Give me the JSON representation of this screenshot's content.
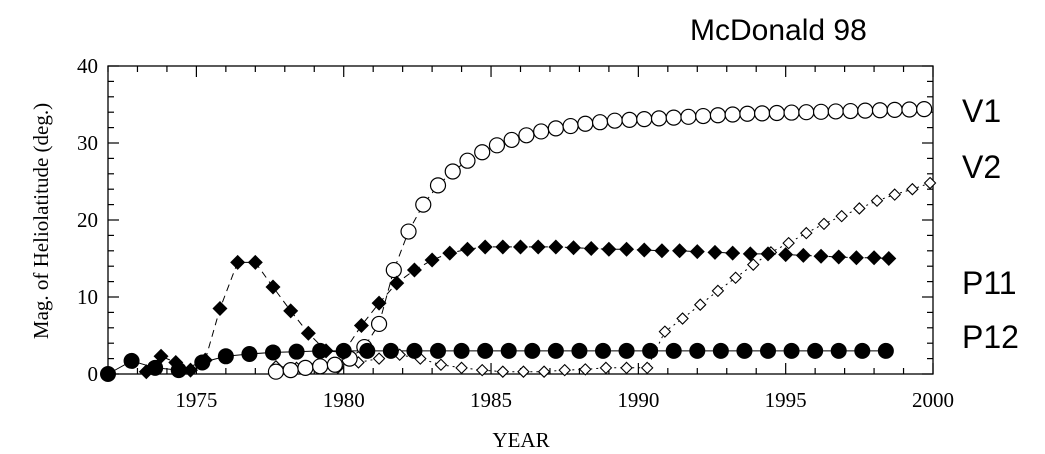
{
  "chart_data": {
    "type": "scatter",
    "title": "McDonald 98",
    "xlabel": "YEAR",
    "ylabel": "Mag. of Heliolatitude (deg.)",
    "xlim": [
      1972,
      2000
    ],
    "ylim": [
      0,
      40
    ],
    "x_ticks": [
      1975,
      1980,
      1985,
      1990,
      1995,
      2000
    ],
    "y_ticks": [
      0,
      10,
      20,
      30,
      40
    ],
    "grid": false,
    "legend": "right-side labels",
    "series": [
      {
        "name": "V1",
        "marker": "open-circle",
        "line": "dashed",
        "x": [
          1977.7,
          1978.2,
          1978.7,
          1979.2,
          1979.7,
          1980.2,
          1980.7,
          1981.2,
          1981.7,
          1982.2,
          1982.7,
          1983.2,
          1983.7,
          1984.2,
          1984.7,
          1985.2,
          1985.7,
          1986.2,
          1986.7,
          1987.2,
          1987.7,
          1988.2,
          1988.7,
          1989.2,
          1989.7,
          1990.2,
          1990.7,
          1991.2,
          1991.7,
          1992.2,
          1992.7,
          1993.2,
          1993.7,
          1994.2,
          1994.7,
          1995.2,
          1995.7,
          1996.2,
          1996.7,
          1997.2,
          1997.7,
          1998.2,
          1998.7,
          1999.2,
          1999.7
        ],
        "y": [
          0.3,
          0.5,
          0.8,
          1.0,
          1.2,
          2.0,
          3.5,
          6.5,
          13.5,
          18.5,
          22.0,
          24.5,
          26.3,
          27.7,
          28.8,
          29.7,
          30.4,
          31.0,
          31.5,
          31.9,
          32.2,
          32.5,
          32.7,
          32.9,
          33.0,
          33.1,
          33.2,
          33.3,
          33.4,
          33.5,
          33.6,
          33.7,
          33.8,
          33.85,
          33.9,
          33.95,
          34.0,
          34.05,
          34.1,
          34.15,
          34.2,
          34.25,
          34.3,
          34.35,
          34.4
        ]
      },
      {
        "name": "V2",
        "marker": "open-diamond",
        "line": "dotted",
        "x": [
          1977.7,
          1978.4,
          1979.1,
          1979.8,
          1980.5,
          1981.2,
          1981.9,
          1982.6,
          1983.3,
          1984.0,
          1984.7,
          1985.4,
          1986.1,
          1986.8,
          1987.5,
          1988.2,
          1988.9,
          1989.6,
          1990.3,
          1990.9,
          1991.5,
          1992.1,
          1992.7,
          1993.3,
          1993.9,
          1994.5,
          1995.1,
          1995.7,
          1996.3,
          1996.9,
          1997.5,
          1998.1,
          1998.7,
          1999.3,
          1999.9
        ],
        "y": [
          1.0,
          0.8,
          1.2,
          0.8,
          1.5,
          2.0,
          2.5,
          2.0,
          1.2,
          0.8,
          0.5,
          0.3,
          0.3,
          0.3,
          0.5,
          0.6,
          0.8,
          0.8,
          0.8,
          5.5,
          7.2,
          9.0,
          10.8,
          12.5,
          14.2,
          15.8,
          17.0,
          18.3,
          19.5,
          20.5,
          21.5,
          22.5,
          23.3,
          24.0,
          24.8
        ]
      },
      {
        "name": "P11",
        "marker": "filled-diamond",
        "line": "dashed",
        "x": [
          1973.3,
          1973.8,
          1974.3,
          1974.8,
          1975.3,
          1975.8,
          1976.4,
          1977.0,
          1977.6,
          1978.2,
          1978.8,
          1979.4,
          1980.0,
          1980.6,
          1981.2,
          1981.8,
          1982.4,
          1983.0,
          1983.6,
          1984.2,
          1984.8,
          1985.4,
          1986.0,
          1986.6,
          1987.2,
          1987.8,
          1988.4,
          1989.0,
          1989.6,
          1990.2,
          1990.8,
          1991.4,
          1992.0,
          1992.6,
          1993.2,
          1993.8,
          1994.4,
          1995.0,
          1995.6,
          1996.2,
          1996.8,
          1997.4,
          1998.0,
          1998.5
        ],
        "y": [
          0.3,
          2.3,
          1.5,
          0.5,
          1.8,
          8.5,
          14.5,
          14.5,
          11.3,
          8.2,
          5.3,
          3.0,
          2.8,
          6.3,
          9.2,
          11.8,
          13.5,
          14.8,
          15.7,
          16.2,
          16.5,
          16.5,
          16.5,
          16.5,
          16.5,
          16.4,
          16.3,
          16.2,
          16.2,
          16.1,
          16.0,
          16.0,
          15.9,
          15.8,
          15.7,
          15.6,
          15.6,
          15.5,
          15.4,
          15.3,
          15.2,
          15.1,
          15.1,
          15.0
        ]
      },
      {
        "name": "P12",
        "marker": "filled-circle",
        "line": "solid",
        "x": [
          1972.0,
          1972.8,
          1973.6,
          1974.4,
          1975.2,
          1976.0,
          1976.8,
          1977.6,
          1978.4,
          1979.2,
          1980.0,
          1980.8,
          1981.6,
          1982.4,
          1983.2,
          1984.0,
          1984.8,
          1985.6,
          1986.4,
          1987.2,
          1988.0,
          1988.8,
          1989.6,
          1990.4,
          1991.2,
          1992.0,
          1992.8,
          1993.6,
          1994.4,
          1995.2,
          1996.0,
          1996.8,
          1997.6,
          1998.4
        ],
        "y": [
          0.0,
          1.7,
          0.8,
          0.5,
          1.5,
          2.3,
          2.6,
          2.8,
          2.9,
          3.0,
          3.0,
          3.0,
          3.0,
          3.0,
          3.0,
          3.0,
          3.0,
          3.0,
          3.0,
          3.0,
          3.0,
          3.0,
          3.0,
          3.0,
          3.0,
          3.0,
          3.0,
          3.0,
          3.0,
          3.0,
          3.0,
          3.0,
          3.0,
          3.0
        ]
      }
    ],
    "side_labels": [
      {
        "series": "V1",
        "text": "V1"
      },
      {
        "series": "V2",
        "text": "V2"
      },
      {
        "series": "P11",
        "text": "P11"
      },
      {
        "series": "P12",
        "text": "P12"
      }
    ]
  }
}
